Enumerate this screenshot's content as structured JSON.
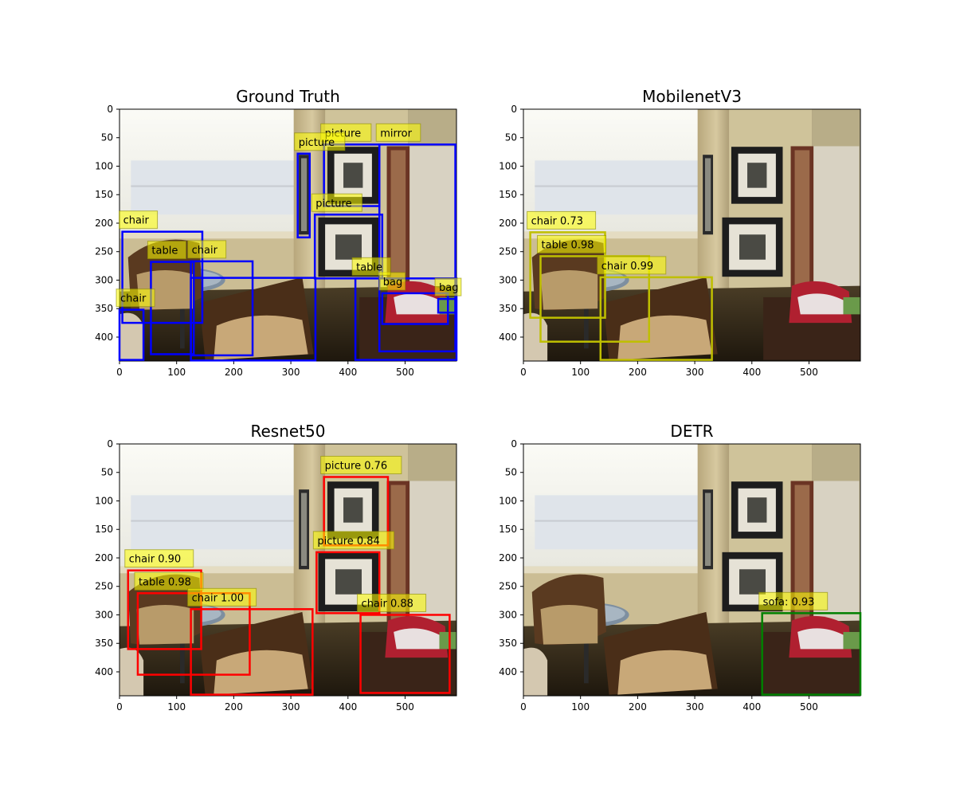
{
  "figure": {
    "background": "#ffffff",
    "label_box_color": "#ffff00",
    "image_description": "hotel room photo"
  },
  "chart_data": [
    {
      "type": "image-detection",
      "title": "Ground Truth",
      "xlim": [
        0,
        590
      ],
      "ylim": [
        442,
        0
      ],
      "xticks": [
        0,
        100,
        200,
        300,
        400,
        500
      ],
      "yticks": [
        0,
        50,
        100,
        150,
        200,
        250,
        300,
        350,
        400
      ],
      "box_color": "#0000ff",
      "boxes": [
        {
          "label": "picture",
          "x0": 358,
          "y0": 62,
          "x1": 455,
          "y1": 170
        },
        {
          "label": "mirror",
          "x0": 455,
          "y0": 62,
          "x1": 588,
          "y1": 425
        },
        {
          "label": "picture",
          "x0": 312,
          "y0": 78,
          "x1": 333,
          "y1": 225
        },
        {
          "label": "picture",
          "x0": 342,
          "y0": 185,
          "x1": 460,
          "y1": 297
        },
        {
          "label": "chair",
          "x0": 5,
          "y0": 215,
          "x1": 145,
          "y1": 375
        },
        {
          "label": "table",
          "x0": 55,
          "y0": 268,
          "x1": 130,
          "y1": 430
        },
        {
          "label": "chair",
          "x0": 125,
          "y0": 267,
          "x1": 233,
          "y1": 432
        },
        {
          "label": "bag",
          "x0": 460,
          "y0": 323,
          "x1": 575,
          "y1": 377
        },
        {
          "label": "bag",
          "x0": 558,
          "y0": 333,
          "x1": 588,
          "y1": 357
        },
        {
          "label": "table",
          "x0": 413,
          "y0": 297,
          "x1": 590,
          "y1": 440
        },
        {
          "label": "chair",
          "x0": 0,
          "y0": 352,
          "x1": 42,
          "y1": 440
        },
        {
          "label": "",
          "x0": 125,
          "y0": 296,
          "x1": 343,
          "y1": 441
        }
      ]
    },
    {
      "type": "image-detection",
      "title": "MobilenetV3",
      "xlim": [
        0,
        590
      ],
      "ylim": [
        442,
        0
      ],
      "xticks": [
        0,
        100,
        200,
        300,
        400,
        500
      ],
      "yticks": [
        0,
        50,
        100,
        150,
        200,
        250,
        300,
        350,
        400
      ],
      "box_color": "#bfbf00",
      "boxes": [
        {
          "label": "chair 0.73",
          "x0": 12,
          "y0": 216,
          "x1": 143,
          "y1": 366
        },
        {
          "label": "table 0.98",
          "x0": 30,
          "y0": 258,
          "x1": 220,
          "y1": 408
        },
        {
          "label": "chair 0.99",
          "x0": 135,
          "y0": 295,
          "x1": 330,
          "y1": 440
        }
      ]
    },
    {
      "type": "image-detection",
      "title": "Resnet50",
      "xlim": [
        0,
        590
      ],
      "ylim": [
        442,
        0
      ],
      "xticks": [
        0,
        100,
        200,
        300,
        400,
        500
      ],
      "yticks": [
        0,
        50,
        100,
        150,
        200,
        250,
        300,
        350,
        400
      ],
      "box_color": "#ff0000",
      "boxes": [
        {
          "label": "picture 0.76",
          "x0": 358,
          "y0": 58,
          "x1": 470,
          "y1": 178
        },
        {
          "label": "picture 0.84",
          "x0": 345,
          "y0": 190,
          "x1": 455,
          "y1": 297
        },
        {
          "label": "chair 0.90",
          "x0": 15,
          "y0": 222,
          "x1": 143,
          "y1": 360
        },
        {
          "label": "table 0.98",
          "x0": 32,
          "y0": 262,
          "x1": 228,
          "y1": 405
        },
        {
          "label": "chair 1.00",
          "x0": 125,
          "y0": 290,
          "x1": 338,
          "y1": 440
        },
        {
          "label": "chair 0.88",
          "x0": 422,
          "y0": 300,
          "x1": 578,
          "y1": 437
        }
      ]
    },
    {
      "type": "image-detection",
      "title": "DETR",
      "xlim": [
        0,
        590
      ],
      "ylim": [
        442,
        0
      ],
      "xticks": [
        0,
        100,
        200,
        300,
        400,
        500
      ],
      "yticks": [
        0,
        50,
        100,
        150,
        200,
        250,
        300,
        350,
        400
      ],
      "box_color": "#008000",
      "boxes": [
        {
          "label": "sofa: 0.93",
          "x0": 418,
          "y0": 297,
          "x1": 590,
          "y1": 440
        }
      ]
    }
  ]
}
